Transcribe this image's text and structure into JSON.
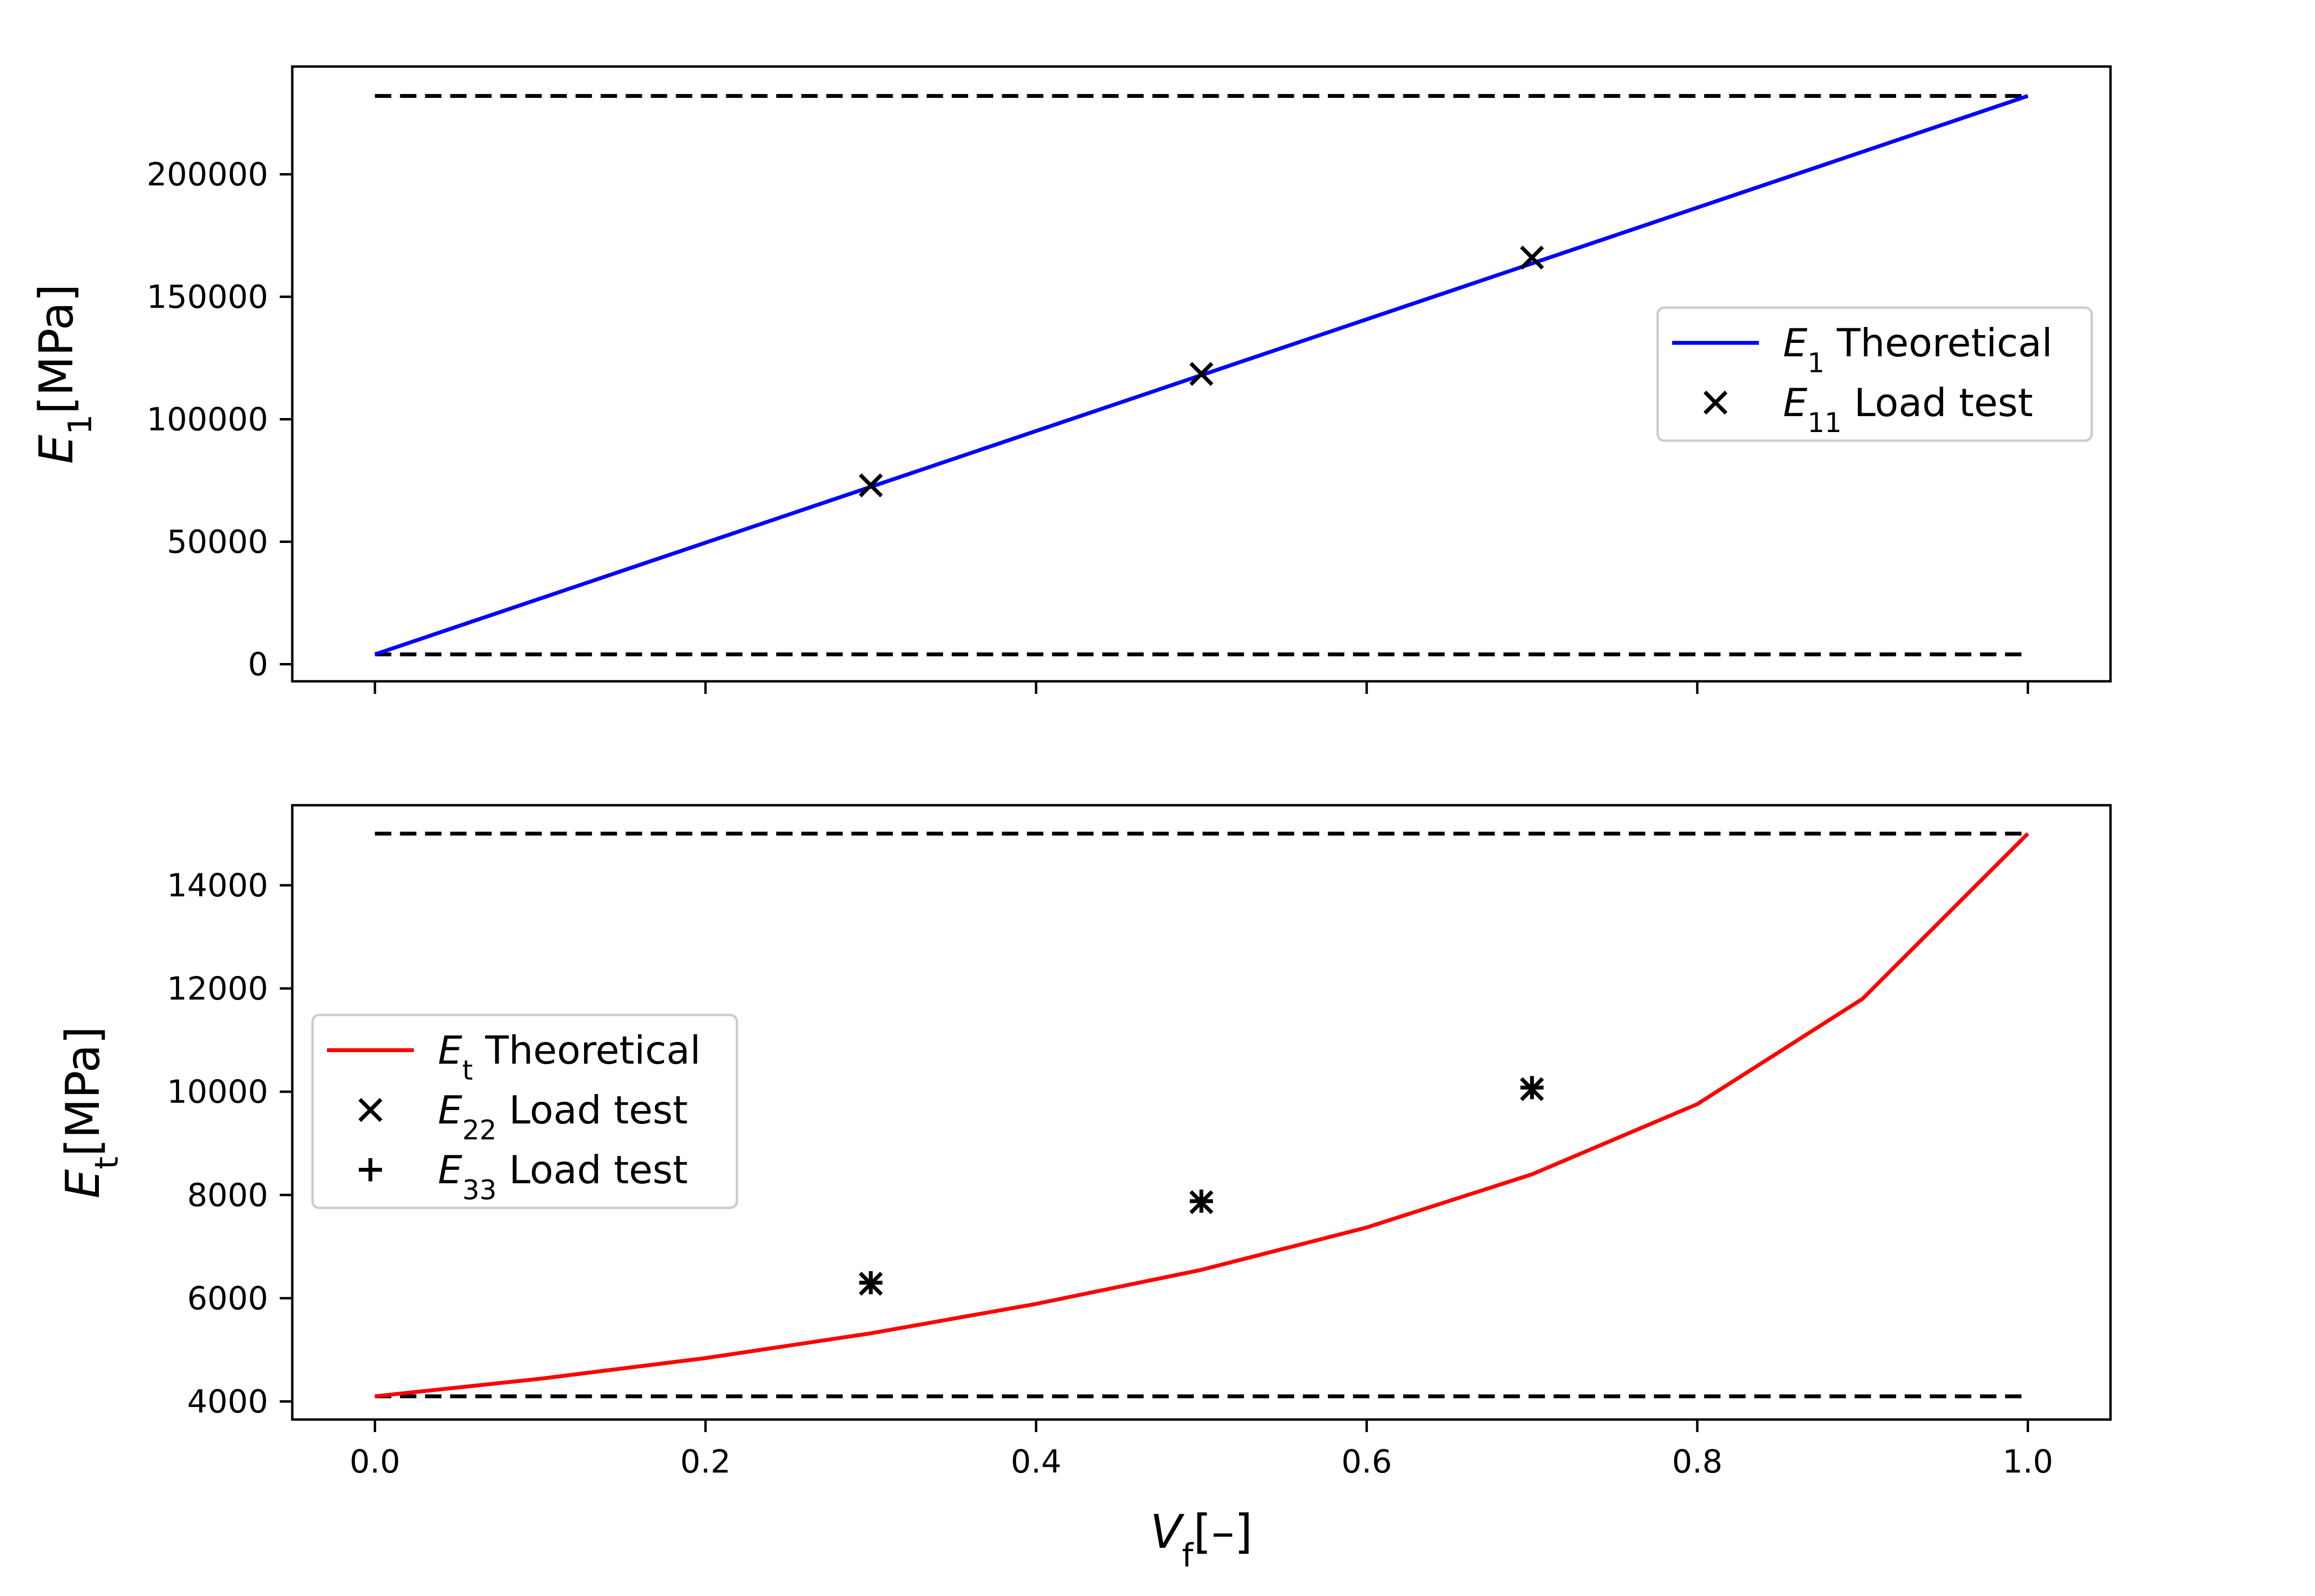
{
  "chart_data": [
    {
      "type": "line",
      "panel": "top",
      "ylabel": {
        "sym": "E",
        "sub": "1",
        "unit": "[MPa]"
      },
      "xlim": [
        -0.05,
        1.05
      ],
      "ylim": [
        -7000,
        244000
      ],
      "xticks": [
        0.0,
        0.2,
        0.4,
        0.6,
        0.8,
        1.0
      ],
      "xtick_labels_visible": false,
      "yticks": [
        0,
        50000,
        100000,
        150000,
        200000
      ],
      "ytick_labels": [
        "0",
        "50000",
        "100000",
        "150000",
        "200000"
      ],
      "grid": false,
      "legend_placement": "center-right",
      "series": [
        {
          "name": "Theoretical",
          "math": {
            "sym": "E",
            "sub": "1"
          },
          "kind": "line",
          "color": "#0000ff",
          "x": [
            0.0,
            1.0
          ],
          "y": [
            4000,
            232000
          ]
        },
        {
          "name": "Load test",
          "math": {
            "sym": "E",
            "sub": "11"
          },
          "kind": "scatter",
          "marker": "x",
          "color": "#000000",
          "x": [
            0.3,
            0.5,
            0.7
          ],
          "y": [
            73000,
            118500,
            166000
          ]
        }
      ],
      "bounds": [
        {
          "style": "dashed",
          "color": "#000000",
          "x": [
            0.0,
            1.0
          ],
          "y": 232000
        },
        {
          "style": "dashed",
          "color": "#000000",
          "x": [
            0.0,
            1.0
          ],
          "y": 4000
        }
      ]
    },
    {
      "type": "line",
      "panel": "bottom",
      "xlabel": {
        "sym": "V",
        "sub": "f",
        "unit": "[–]"
      },
      "ylabel": {
        "sym": "E",
        "sub": "t",
        "unit": "[MPa]"
      },
      "xlim": [
        -0.05,
        1.05
      ],
      "ylim": [
        3650,
        15550
      ],
      "xticks": [
        0.0,
        0.2,
        0.4,
        0.6,
        0.8,
        1.0
      ],
      "xtick_labels": [
        "0.0",
        "0.2",
        "0.4",
        "0.6",
        "0.8",
        "1.0"
      ],
      "yticks": [
        4000,
        6000,
        8000,
        10000,
        12000,
        14000
      ],
      "ytick_labels": [
        "4000",
        "6000",
        "8000",
        "10000",
        "12000",
        "14000"
      ],
      "grid": false,
      "legend_placement": "center-left",
      "series": [
        {
          "name": "Theoretical",
          "math": {
            "sym": "E",
            "sub": "t"
          },
          "kind": "line",
          "color": "#ff0000",
          "x": [
            0.0,
            0.1,
            0.2,
            0.3,
            0.4,
            0.5,
            0.6,
            0.7,
            0.8,
            0.9,
            1.0
          ],
          "y": [
            4100,
            4440,
            4840,
            5320,
            5890,
            6550,
            7370,
            8400,
            9760,
            11800,
            15000
          ]
        },
        {
          "name": "Load test",
          "math": {
            "sym": "E",
            "sub": "22"
          },
          "kind": "scatter",
          "marker": "x",
          "color": "#000000",
          "x": [
            0.3,
            0.5,
            0.7
          ],
          "y": [
            6280,
            7860,
            10050
          ]
        },
        {
          "name": "Load test",
          "math": {
            "sym": "E",
            "sub": "33"
          },
          "kind": "scatter",
          "marker": "+",
          "color": "#000000",
          "x": [
            0.3,
            0.5,
            0.7
          ],
          "y": [
            6300,
            7880,
            10080
          ]
        }
      ],
      "bounds": [
        {
          "style": "dashed",
          "color": "#000000",
          "x": [
            0.0,
            1.0
          ],
          "y": 15000
        },
        {
          "style": "dashed",
          "color": "#000000",
          "x": [
            0.0,
            1.0
          ],
          "y": 4100
        }
      ]
    }
  ]
}
